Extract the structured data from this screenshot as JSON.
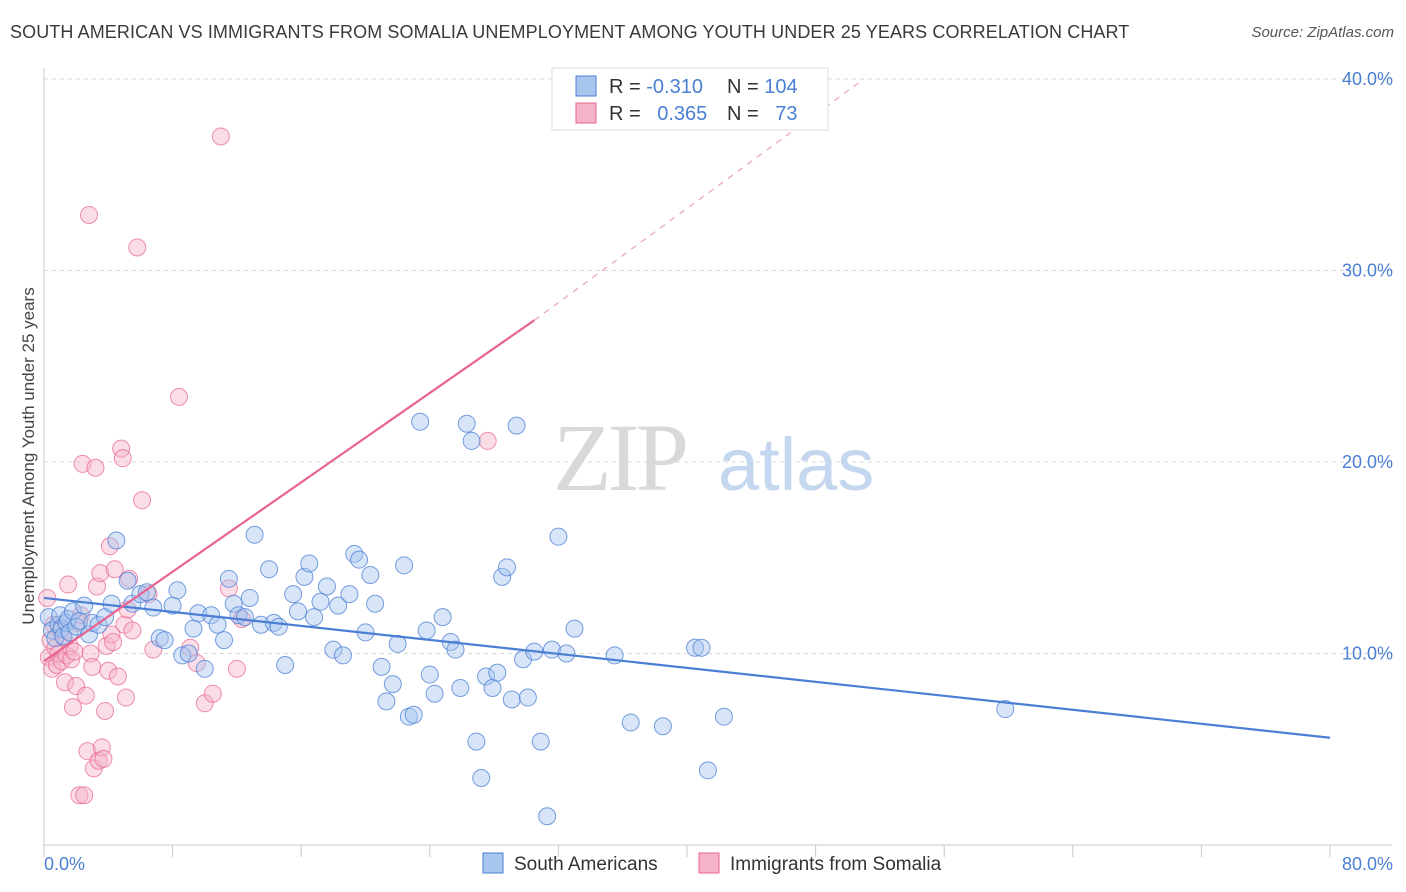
{
  "title": "SOUTH AMERICAN VS IMMIGRANTS FROM SOMALIA UNEMPLOYMENT AMONG YOUTH UNDER 25 YEARS CORRELATION CHART",
  "source": "Source: ZipAtlas.com",
  "watermark": {
    "zip": "ZIP",
    "atlas": "atlas"
  },
  "colors": {
    "blue": "#4a7fd4",
    "blue_fill": "#a9c6ef",
    "pink": "#e8638f",
    "pink_fill": "#f5b3c8",
    "grid": "#d8d8d8"
  },
  "legend": {
    "rows": [
      {
        "r_label": "R = ",
        "r_value": "-0.310",
        "n_label": "N = ",
        "n_value": "104"
      },
      {
        "r_label": "R = ",
        "r_value": "0.365",
        "n_label": "N = ",
        "n_value": "73"
      }
    ]
  },
  "bottom_legend": [
    "South Americans",
    "Immigrants from Somalia"
  ],
  "chart_data": {
    "type": "scatter",
    "title": "SOUTH AMERICAN VS IMMIGRANTS FROM SOMALIA UNEMPLOYMENT AMONG YOUTH UNDER 25 YEARS CORRELATION CHART",
    "xlabel": "",
    "ylabel": "Unemployment Among Youth under 25 years",
    "xlim": [
      0,
      80
    ],
    "ylim": [
      0,
      40
    ],
    "x_tick_labels": [
      "0.0%",
      "80.0%"
    ],
    "y_ticks": [
      10,
      20,
      30,
      40
    ],
    "y_tick_labels": [
      "10.0%",
      "20.0%",
      "30.0%",
      "40.0%"
    ],
    "grid": true,
    "legend_position": "top-center",
    "series": [
      {
        "name": "South Americans",
        "color": "#4a7fd4",
        "r": -0.31,
        "n": 104,
        "trend": {
          "x": [
            0,
            80
          ],
          "y": [
            12.9,
            5.6
          ]
        },
        "points": [
          [
            0.3,
            11.9
          ],
          [
            0.5,
            11.2
          ],
          [
            0.7,
            10.8
          ],
          [
            0.9,
            11.5
          ],
          [
            1.0,
            12.0
          ],
          [
            1.1,
            11.3
          ],
          [
            1.2,
            10.9
          ],
          [
            1.4,
            11.6
          ],
          [
            1.5,
            11.8
          ],
          [
            1.6,
            11.1
          ],
          [
            1.8,
            12.2
          ],
          [
            2.0,
            11.4
          ],
          [
            2.2,
            11.7
          ],
          [
            2.5,
            12.5
          ],
          [
            2.8,
            11.0
          ],
          [
            3.0,
            11.6
          ],
          [
            3.4,
            11.5
          ],
          [
            3.8,
            11.9
          ],
          [
            4.2,
            12.6
          ],
          [
            4.5,
            15.9
          ],
          [
            5.2,
            13.8
          ],
          [
            5.5,
            12.6
          ],
          [
            6.0,
            13.1
          ],
          [
            6.4,
            13.2
          ],
          [
            6.8,
            12.4
          ],
          [
            7.2,
            10.8
          ],
          [
            7.5,
            10.7
          ],
          [
            8.0,
            12.5
          ],
          [
            8.3,
            13.3
          ],
          [
            8.6,
            9.9
          ],
          [
            9.0,
            10.0
          ],
          [
            9.3,
            11.3
          ],
          [
            9.6,
            12.1
          ],
          [
            10.0,
            9.2
          ],
          [
            10.4,
            12.0
          ],
          [
            10.8,
            11.5
          ],
          [
            11.2,
            10.7
          ],
          [
            11.5,
            13.9
          ],
          [
            11.8,
            12.6
          ],
          [
            12.1,
            12.0
          ],
          [
            12.5,
            11.9
          ],
          [
            12.8,
            12.9
          ],
          [
            13.1,
            16.2
          ],
          [
            13.5,
            11.5
          ],
          [
            14.0,
            14.4
          ],
          [
            14.3,
            11.6
          ],
          [
            14.6,
            11.4
          ],
          [
            15.0,
            9.4
          ],
          [
            15.5,
            13.1
          ],
          [
            15.8,
            12.2
          ],
          [
            16.2,
            14.0
          ],
          [
            16.5,
            14.7
          ],
          [
            16.8,
            11.9
          ],
          [
            17.2,
            12.7
          ],
          [
            17.6,
            13.5
          ],
          [
            18.0,
            10.2
          ],
          [
            18.3,
            12.5
          ],
          [
            18.6,
            9.9
          ],
          [
            19.0,
            13.1
          ],
          [
            19.3,
            15.2
          ],
          [
            19.6,
            14.9
          ],
          [
            20.0,
            11.1
          ],
          [
            20.3,
            14.1
          ],
          [
            20.6,
            12.6
          ],
          [
            21.0,
            9.3
          ],
          [
            21.3,
            7.5
          ],
          [
            21.7,
            8.4
          ],
          [
            22.0,
            10.5
          ],
          [
            22.4,
            14.6
          ],
          [
            22.7,
            6.7
          ],
          [
            23.0,
            6.8
          ],
          [
            23.4,
            22.1
          ],
          [
            23.8,
            11.2
          ],
          [
            24.0,
            8.9
          ],
          [
            24.3,
            7.9
          ],
          [
            24.8,
            11.9
          ],
          [
            25.3,
            10.6
          ],
          [
            25.6,
            10.2
          ],
          [
            25.9,
            8.2
          ],
          [
            26.3,
            22.0
          ],
          [
            26.6,
            21.1
          ],
          [
            26.9,
            5.4
          ],
          [
            27.2,
            3.5
          ],
          [
            27.5,
            8.8
          ],
          [
            27.9,
            8.2
          ],
          [
            28.2,
            9.0
          ],
          [
            28.5,
            14.0
          ],
          [
            28.8,
            14.5
          ],
          [
            29.1,
            7.6
          ],
          [
            29.4,
            21.9
          ],
          [
            29.8,
            9.7
          ],
          [
            30.1,
            7.7
          ],
          [
            30.5,
            10.1
          ],
          [
            30.9,
            5.4
          ],
          [
            31.3,
            1.5
          ],
          [
            31.6,
            10.2
          ],
          [
            32.0,
            16.1
          ],
          [
            32.5,
            10.0
          ],
          [
            33.0,
            11.3
          ],
          [
            35.5,
            9.9
          ],
          [
            36.5,
            6.4
          ],
          [
            38.5,
            6.2
          ],
          [
            40.5,
            10.3
          ],
          [
            40.9,
            10.3
          ],
          [
            41.3,
            3.9
          ],
          [
            42.3,
            6.7
          ],
          [
            59.8,
            7.1
          ]
        ]
      },
      {
        "name": "Immigrants from Somalia",
        "color": "#e8638f",
        "r": 0.365,
        "n": 73,
        "trend": {
          "x": [
            0,
            30.5
          ],
          "y": [
            9.6,
            27.4
          ]
        },
        "trend_dashed": {
          "x": [
            30.5,
            51
          ],
          "y": [
            27.4,
            40
          ]
        },
        "points": [
          [
            0.2,
            12.9
          ],
          [
            0.3,
            9.8
          ],
          [
            0.4,
            10.7
          ],
          [
            0.5,
            9.2
          ],
          [
            0.6,
            11.5
          ],
          [
            0.7,
            10.3
          ],
          [
            0.8,
            9.4
          ],
          [
            0.9,
            10.0
          ],
          [
            1.0,
            11.2
          ],
          [
            1.1,
            9.6
          ],
          [
            1.2,
            10.9
          ],
          [
            1.3,
            8.5
          ],
          [
            1.4,
            9.9
          ],
          [
            1.5,
            13.6
          ],
          [
            1.6,
            10.4
          ],
          [
            1.7,
            9.7
          ],
          [
            1.8,
            7.2
          ],
          [
            1.9,
            10.1
          ],
          [
            2.0,
            8.3
          ],
          [
            2.1,
            11.6
          ],
          [
            2.2,
            2.6
          ],
          [
            2.3,
            12.0
          ],
          [
            2.4,
            19.9
          ],
          [
            2.5,
            2.6
          ],
          [
            2.6,
            7.8
          ],
          [
            2.7,
            4.9
          ],
          [
            2.8,
            32.9
          ],
          [
            2.9,
            10.0
          ],
          [
            3.0,
            9.3
          ],
          [
            3.1,
            4.0
          ],
          [
            3.2,
            19.7
          ],
          [
            3.3,
            13.5
          ],
          [
            3.4,
            4.4
          ],
          [
            3.5,
            14.2
          ],
          [
            3.6,
            5.1
          ],
          [
            3.7,
            4.5
          ],
          [
            3.8,
            7.0
          ],
          [
            3.9,
            10.4
          ],
          [
            4.0,
            9.1
          ],
          [
            4.1,
            15.6
          ],
          [
            4.2,
            11.0
          ],
          [
            4.3,
            10.6
          ],
          [
            4.4,
            14.4
          ],
          [
            4.6,
            8.8
          ],
          [
            4.8,
            20.7
          ],
          [
            4.9,
            20.2
          ],
          [
            5.0,
            11.5
          ],
          [
            5.1,
            7.7
          ],
          [
            5.2,
            12.3
          ],
          [
            5.3,
            13.9
          ],
          [
            5.5,
            11.2
          ],
          [
            5.8,
            31.2
          ],
          [
            6.1,
            18.0
          ],
          [
            6.5,
            13.1
          ],
          [
            6.8,
            10.2
          ],
          [
            8.4,
            23.4
          ],
          [
            9.1,
            10.3
          ],
          [
            9.5,
            9.5
          ],
          [
            10.0,
            7.4
          ],
          [
            10.5,
            7.9
          ],
          [
            11.0,
            37.0
          ],
          [
            11.5,
            13.4
          ],
          [
            12.0,
            9.2
          ],
          [
            12.3,
            11.8
          ],
          [
            27.6,
            21.1
          ]
        ]
      }
    ]
  }
}
